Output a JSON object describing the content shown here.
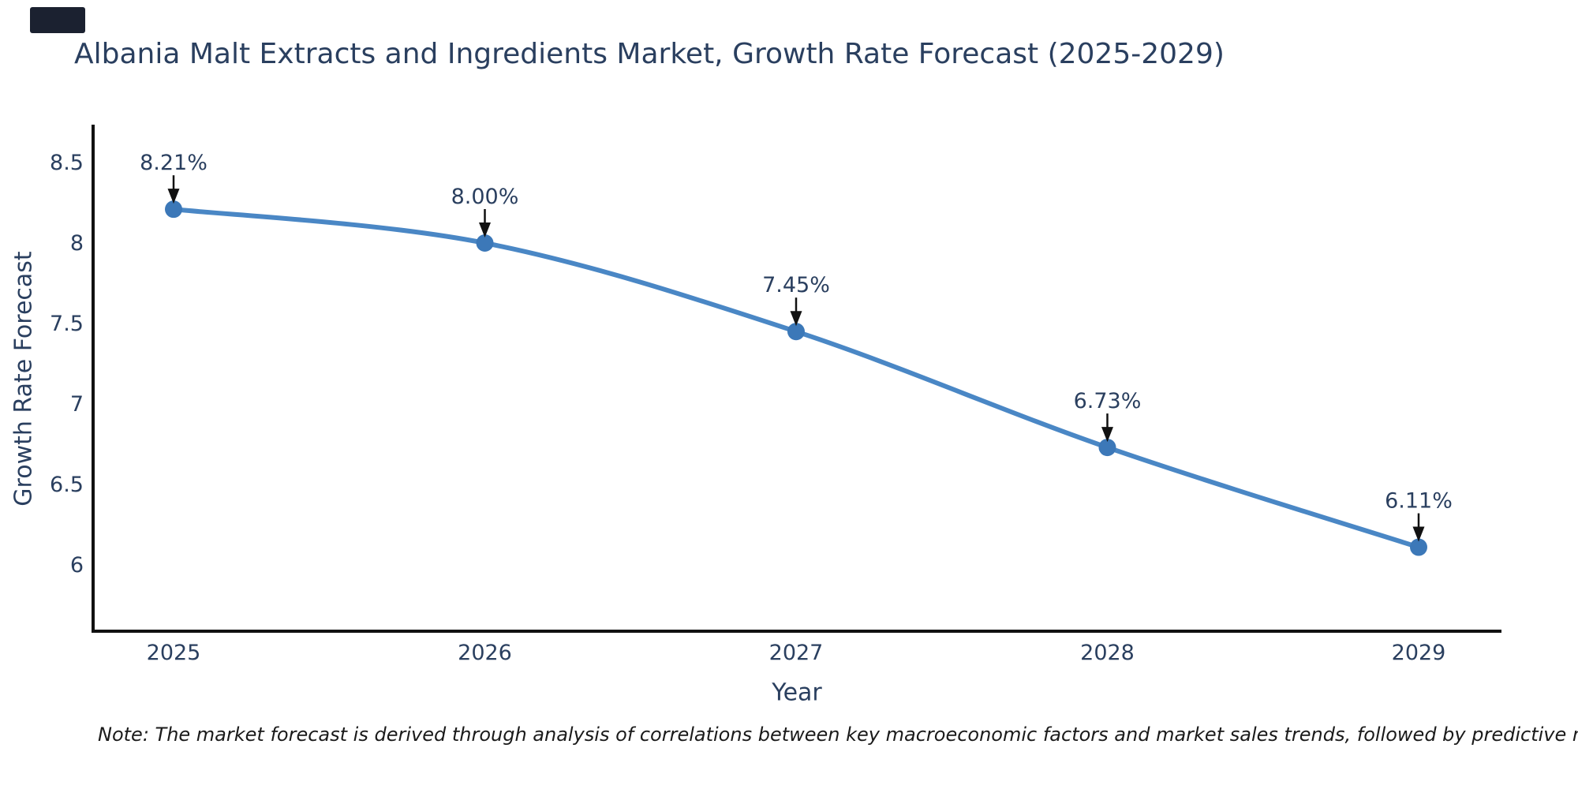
{
  "corner_fragment": {
    "color": "#1b2130"
  },
  "footnote": {
    "text": "Note: The market forecast is derived through analysis of correlations between key macroeconomic factors and market sales trends, followed by predictive modeling to project future sales"
  },
  "chart_data": {
    "type": "line",
    "title": "Albania Malt Extracts and Ingredients Market, Growth Rate Forecast (2025-2029)",
    "xlabel": "Year",
    "ylabel": "Growth Rate Forecast",
    "x": [
      2025,
      2026,
      2027,
      2028,
      2029
    ],
    "values": [
      8.21,
      8.0,
      7.45,
      6.73,
      6.11
    ],
    "point_labels": [
      "8.21%",
      "8.00%",
      "7.45%",
      "6.73%",
      "6.11%"
    ],
    "xtick_labels": [
      "2025",
      "2026",
      "2027",
      "2028",
      "2029"
    ],
    "ytick_values": [
      8.5,
      8.0,
      7.5,
      7.0,
      6.5,
      6.0
    ],
    "ytick_labels": [
      "8.5",
      "8",
      "7.5",
      "7",
      "6.5",
      "6"
    ],
    "yaxis_range": [
      5.72,
      8.72
    ],
    "grid": false,
    "legend_position": "none",
    "line_shape": "spline",
    "colors": {
      "line": "#4a87c5",
      "marker": "#3c78b8",
      "axis": "#111111",
      "text": "#2a3f5f",
      "annotation_arrow": "#111111"
    }
  }
}
